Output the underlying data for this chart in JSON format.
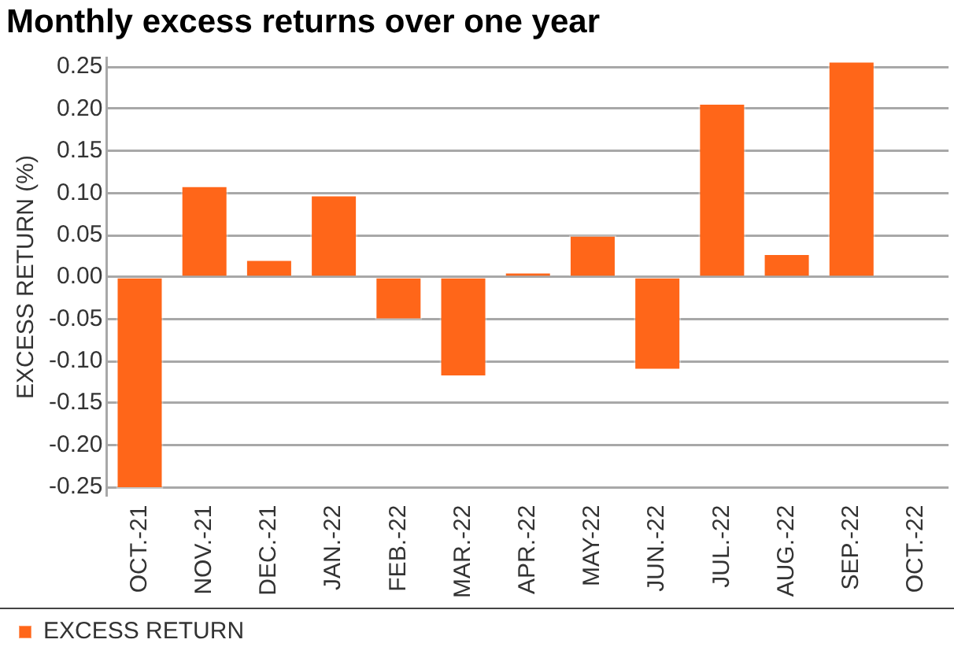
{
  "chart_data": {
    "type": "bar",
    "title": "Monthly excess returns over one year",
    "ylabel": "EXCESS RETURN (%)",
    "categories": [
      "OCT.-21",
      "NOV.-21",
      "DEC.-21",
      "JAN.-22",
      "FEB.-22",
      "MAR.-22",
      "APR.-22",
      "MAY-22",
      "JUN.-22",
      "JUL.-22",
      "AUG.-22",
      "SEP.-22",
      "OCT.-22"
    ],
    "series": [
      {
        "name": "EXCESS RETURN",
        "color": "#ff6619",
        "values": [
          -0.252,
          0.109,
          0.021,
          0.098,
          -0.051,
          -0.119,
          0.006,
          0.05,
          -0.111,
          0.207,
          0.028,
          0.257,
          null
        ]
      }
    ],
    "ylim": [
      -0.26,
      0.26
    ],
    "yticks": [
      {
        "value": -0.25,
        "label": "-0.25"
      },
      {
        "value": -0.2,
        "label": "-0.20"
      },
      {
        "value": -0.15,
        "label": "-0.15"
      },
      {
        "value": -0.1,
        "label": "-0.10"
      },
      {
        "value": -0.05,
        "label": "-0.05"
      },
      {
        "value": 0,
        "label": "0.00"
      },
      {
        "value": 0.05,
        "label": "0.05"
      },
      {
        "value": 0.1,
        "label": "0.10"
      },
      {
        "value": 0.15,
        "label": "0.15"
      },
      {
        "value": 0.2,
        "label": "0.20"
      },
      {
        "value": 0.25,
        "label": "0.25"
      }
    ],
    "grid": "y",
    "legend": "bottom left"
  }
}
